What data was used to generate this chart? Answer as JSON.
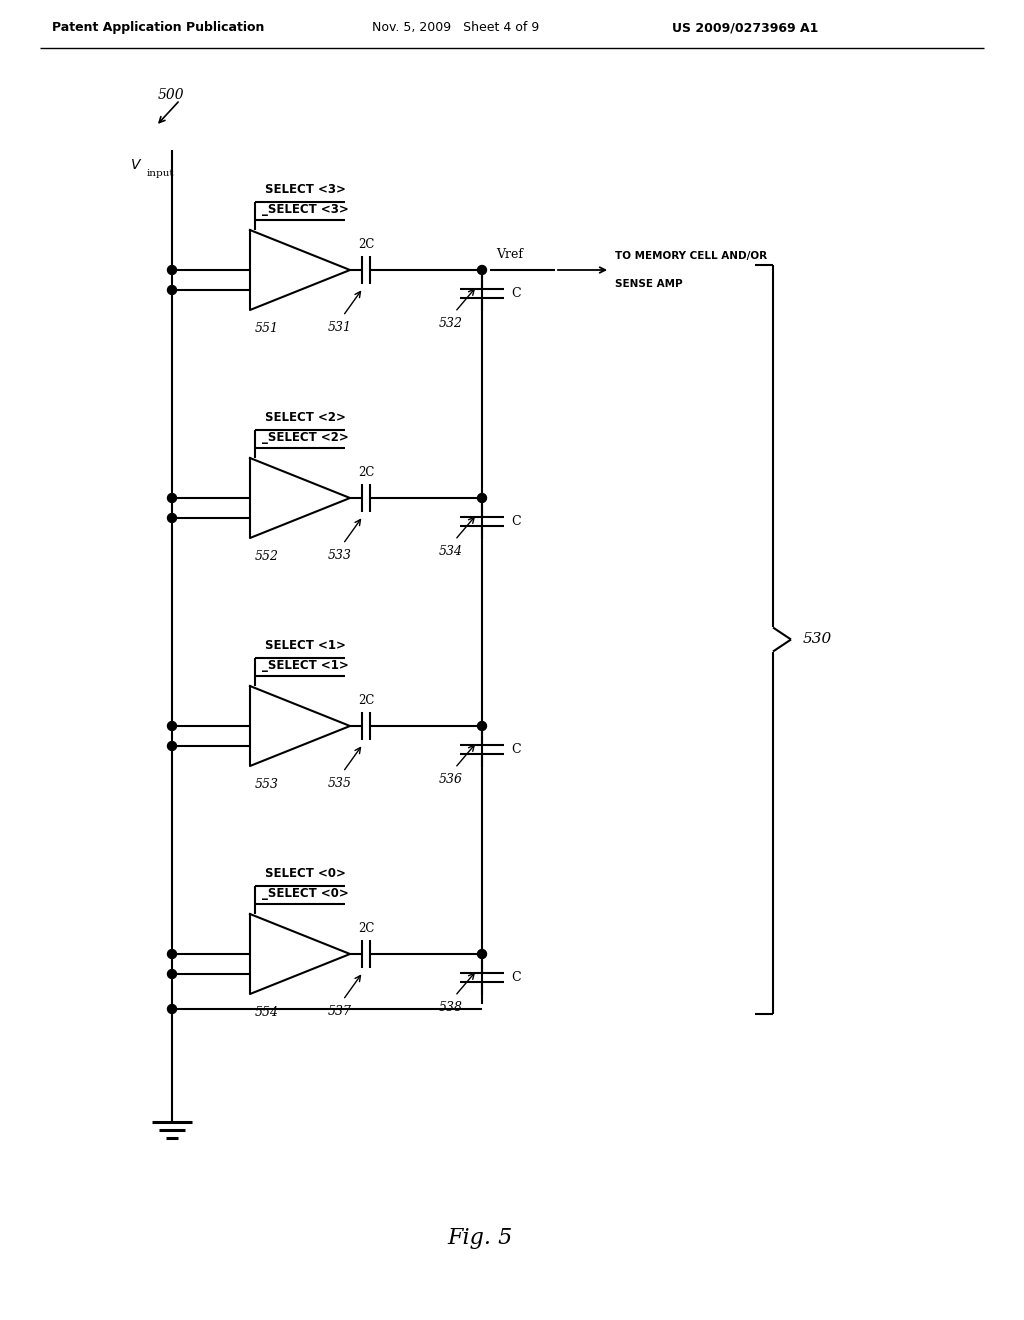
{
  "bg_color": "#ffffff",
  "line_color": "#000000",
  "header_left": "Patent Application Publication",
  "header_mid": "Nov. 5, 2009   Sheet 4 of 9",
  "header_right": "US 2009/0273969 A1",
  "fig_label": "Fig. 5",
  "fig_number": "500",
  "circuit_label": "530",
  "stages": [
    {
      "sel_top": "SELECT <3>",
      "sel_bot": "_SELECT <3>",
      "buf_label": "551",
      "cap2c_label": "531",
      "cap_label": "532",
      "show_vref": true
    },
    {
      "sel_top": "SELECT <2>",
      "sel_bot": "_SELECT <2>",
      "buf_label": "552",
      "cap2c_label": "533",
      "cap_label": "534",
      "show_vref": false
    },
    {
      "sel_top": "SELECT <1>",
      "sel_bot": "_SELECT <1>",
      "buf_label": "553",
      "cap2c_label": "535",
      "cap_label": "536",
      "show_vref": false
    },
    {
      "sel_top": "SELECT <0>",
      "sel_bot": "_SELECT <0>",
      "buf_label": "554",
      "cap2c_label": "537",
      "cap_label": "538",
      "show_vref": false
    }
  ]
}
